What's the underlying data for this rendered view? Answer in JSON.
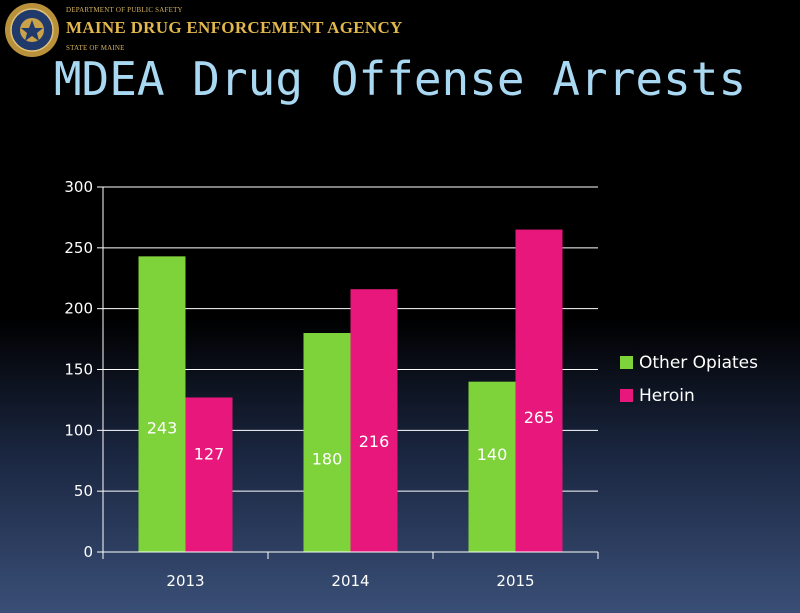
{
  "header": {
    "department": "DEPARTMENT OF PUBLIC SAFETY",
    "agency": "MAINE DRUG ENFORCEMENT AGENCY",
    "state": "STATE OF MAINE",
    "title": "MDEA Drug Offense Arrests"
  },
  "colors": {
    "other_opiates": "#7ed23a",
    "heroin": "#e8177c",
    "title": "#a9d8f2",
    "agency": "#e2b84c"
  },
  "chart_data": {
    "type": "bar",
    "title": "MDEA Drug Offense Arrests",
    "categories": [
      "2013",
      "2014",
      "2015"
    ],
    "series": [
      {
        "name": "Other Opiates",
        "values": [
          243,
          180,
          140
        ]
      },
      {
        "name": "Heroin",
        "values": [
          127,
          216,
          265
        ]
      }
    ],
    "ylim": [
      0,
      300
    ],
    "yticks": [
      0,
      50,
      100,
      150,
      200,
      250,
      300
    ],
    "grid": true,
    "legend": "right"
  }
}
